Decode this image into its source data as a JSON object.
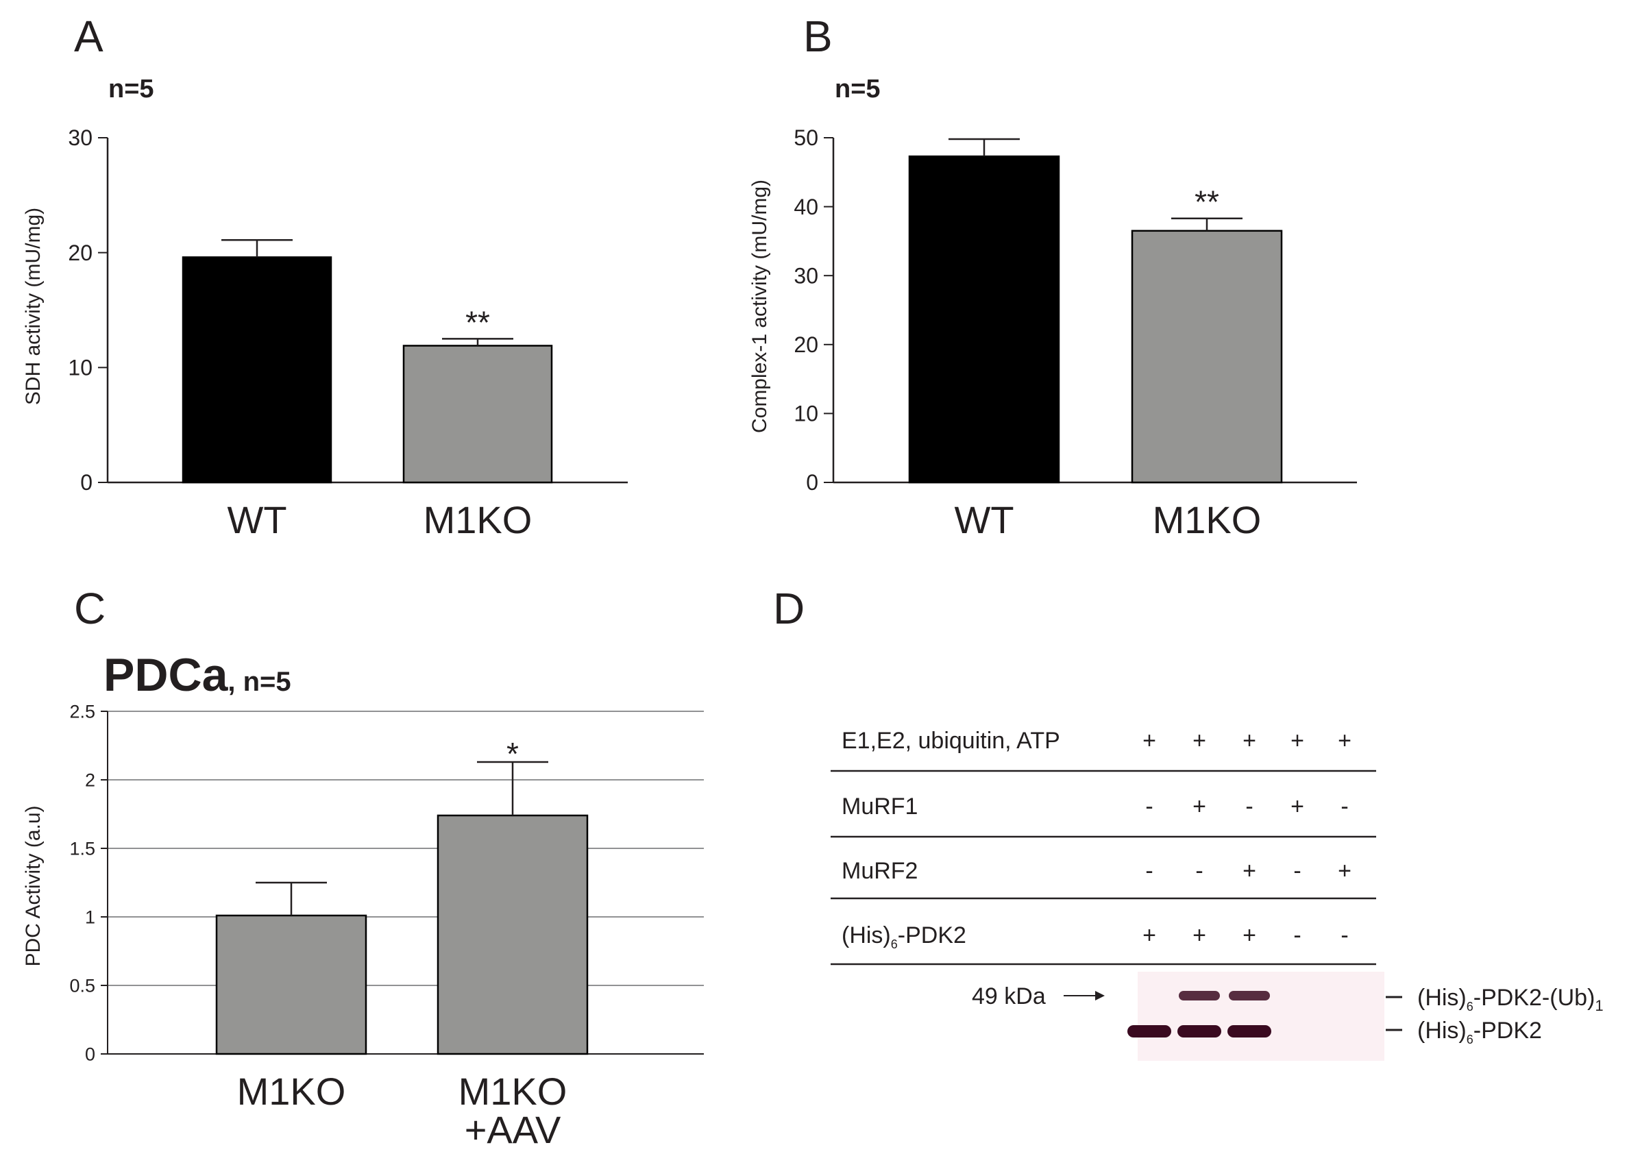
{
  "chart_data": [
    {
      "panel": "A",
      "type": "bar",
      "subtitle": "n=5",
      "ylabel": "SDH activity (mU/mg)",
      "xlabel": "",
      "ylim": [
        0,
        30
      ],
      "yticks": [
        0,
        10,
        20,
        30
      ],
      "categories": [
        "WT",
        "M1KO"
      ],
      "values": [
        19.6,
        11.9
      ],
      "errors": [
        1.5,
        0.6
      ],
      "colors": [
        "#000000",
        "#959593"
      ],
      "significance": [
        "",
        "**"
      ]
    },
    {
      "panel": "B",
      "type": "bar",
      "subtitle": "n=5",
      "ylabel": "Complex-1 activity (mU/mg)",
      "xlabel": "",
      "ylim": [
        0,
        50
      ],
      "yticks": [
        0,
        10,
        20,
        30,
        40,
        50
      ],
      "categories": [
        "WT",
        "M1KO"
      ],
      "values": [
        47.3,
        36.5
      ],
      "errors": [
        2.5,
        1.8
      ],
      "colors": [
        "#000000",
        "#959593"
      ],
      "significance": [
        "",
        "**"
      ]
    },
    {
      "panel": "C",
      "type": "bar",
      "title": "PDCa",
      "subtitle": ", n=5",
      "ylabel": "PDC Activity (a.u)",
      "xlabel": "",
      "ylim": [
        0,
        2.5
      ],
      "yticks": [
        "0",
        "0.5",
        "1",
        "1.5",
        "2",
        "2.5"
      ],
      "grid": true,
      "categories": [
        "M1KO",
        "M1KO+AAV"
      ],
      "category_lines": [
        [
          "M1KO"
        ],
        [
          "M1KO",
          "+AAV"
        ]
      ],
      "values": [
        1.01,
        1.74
      ],
      "errors": [
        0.24,
        0.39
      ],
      "colors": [
        "#959593",
        "#959593"
      ],
      "significance": [
        "",
        "*"
      ]
    }
  ],
  "panel_letters": {
    "a": "A",
    "b": "B",
    "c": "C",
    "d": "D"
  },
  "blot": {
    "rows": [
      {
        "label": "E1,E2, ubiquitin, ATP",
        "signs": [
          "+",
          "+",
          "+",
          "+",
          "+"
        ]
      },
      {
        "label": "MuRF1",
        "signs": [
          "-",
          "+",
          "-",
          "+",
          "-"
        ]
      },
      {
        "label": "MuRF2",
        "signs": [
          "-",
          "-",
          "+",
          "-",
          "+"
        ]
      },
      {
        "label_main": "(His)",
        "label_sub": "6",
        "label_rest": "-PDK2",
        "signs": [
          "+",
          "+",
          "+",
          "-",
          "-"
        ]
      }
    ],
    "marker_label": "49 kDa",
    "band_labels": [
      {
        "main": "(His)",
        "sub": "6",
        "rest": "-PDK2-(Ub)",
        "tail": "1"
      },
      {
        "main": "(His)",
        "sub": "6",
        "rest": "-PDK2",
        "tail": ""
      }
    ],
    "band_color": "#3a0a20",
    "upper_band_lanes": [
      false,
      true,
      true,
      false,
      false
    ],
    "lower_band_lanes": [
      true,
      true,
      true,
      false,
      false
    ]
  }
}
